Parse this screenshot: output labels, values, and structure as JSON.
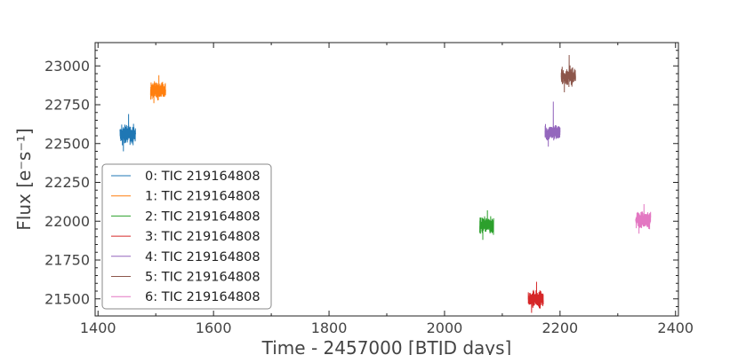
{
  "chart_data": {
    "type": "line",
    "title": "",
    "xlabel": "Time - 2457000 [BTJD days]",
    "ylabel": "Flux [e⁻s⁻¹]",
    "xlim": [
      1395,
      2405
    ],
    "ylim": [
      21390,
      23150
    ],
    "xticks": [
      1400,
      1600,
      1800,
      2000,
      2200,
      2400
    ],
    "yticks": [
      21500,
      21750,
      22000,
      22250,
      22500,
      22750,
      23000
    ],
    "grid": false,
    "legend_position": "lower-left",
    "series": [
      {
        "name": "0: TIC 219164808",
        "color": "#1f77b4",
        "x_start": 1438,
        "x_end": 1465,
        "center": 22560,
        "spread": 60,
        "spike_low": 22450,
        "spike_high": 22690
      },
      {
        "name": "1: TIC 219164808",
        "color": "#ff7f0e",
        "x_start": 1491,
        "x_end": 1517,
        "center": 22840,
        "spread": 55,
        "spike_low": 22760,
        "spike_high": 22940
      },
      {
        "name": "2: TIC 219164808",
        "color": "#2ca02c",
        "x_start": 2061,
        "x_end": 2085,
        "center": 21970,
        "spread": 55,
        "spike_low": 21880,
        "spike_high": 22070
      },
      {
        "name": "3: TIC 219164808",
        "color": "#d62728",
        "x_start": 2145,
        "x_end": 2171,
        "center": 21500,
        "spread": 55,
        "spike_low": 21410,
        "spike_high": 21610
      },
      {
        "name": "4: TIC 219164808",
        "color": "#9467bd",
        "x_start": 2174,
        "x_end": 2200,
        "center": 22570,
        "spread": 55,
        "spike_low": 22480,
        "spike_high": 22770
      },
      {
        "name": "5: TIC 219164808",
        "color": "#8c564b",
        "x_start": 2202,
        "x_end": 2227,
        "center": 22930,
        "spread": 55,
        "spike_low": 22830,
        "spike_high": 23070
      },
      {
        "name": "6: TIC 219164808",
        "color": "#e377c2",
        "x_start": 2331,
        "x_end": 2357,
        "center": 22010,
        "spread": 55,
        "spike_low": 21920,
        "spike_high": 22110
      }
    ]
  }
}
